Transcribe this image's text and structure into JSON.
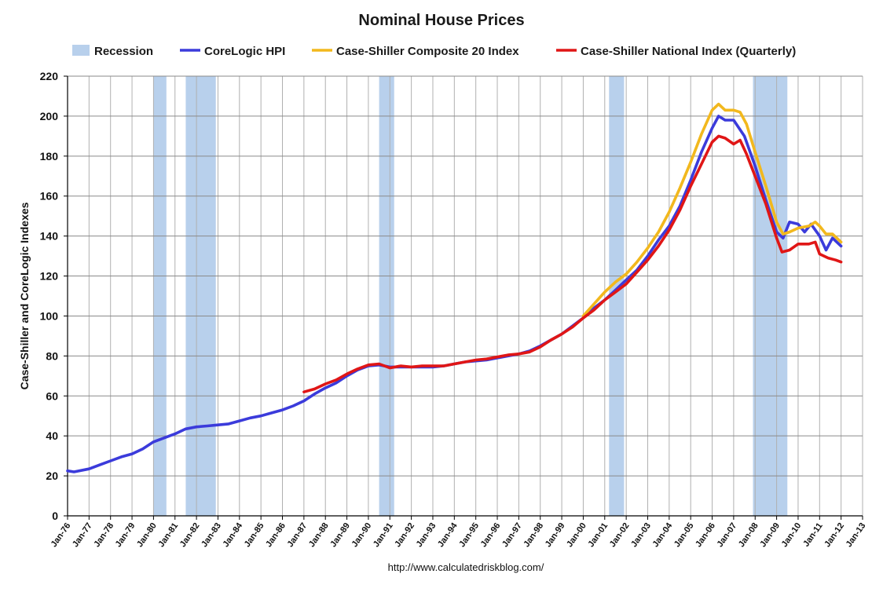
{
  "chart_data": {
    "type": "line",
    "title": "Nominal House Prices",
    "ylabel": "Case-Shiller and CoreLogic Indexes",
    "xlabel": "",
    "ylim": [
      0,
      220
    ],
    "yticks": [
      0,
      20,
      40,
      60,
      80,
      100,
      120,
      140,
      160,
      180,
      200,
      220
    ],
    "xlim": [
      1976,
      2013
    ],
    "xtick_labels": [
      "Jan-76",
      "Jan-77",
      "Jan-78",
      "Jan-79",
      "Jan-80",
      "Jan-81",
      "Jan-82",
      "Jan-83",
      "Jan-84",
      "Jan-85",
      "Jan-86",
      "Jan-87",
      "Jan-88",
      "Jan-89",
      "Jan-90",
      "Jan-91",
      "Jan-92",
      "Jan-93",
      "Jan-94",
      "Jan-95",
      "Jan-96",
      "Jan-97",
      "Jan-98",
      "Jan-99",
      "Jan-00",
      "Jan-01",
      "Jan-02",
      "Jan-03",
      "Jan-04",
      "Jan-05",
      "Jan-06",
      "Jan-07",
      "Jan-08",
      "Jan-09",
      "Jan-10",
      "Jan-11",
      "Jan-12",
      "Jan-13"
    ],
    "grid": true,
    "legend_position": "top",
    "recession": {
      "name": "Recession",
      "color": "#b8d0ec",
      "periods": [
        [
          1980.0,
          1980.6
        ],
        [
          1981.5,
          1982.9
        ],
        [
          1990.5,
          1991.2
        ],
        [
          2001.2,
          2001.9
        ],
        [
          2007.9,
          2009.5
        ]
      ]
    },
    "series": [
      {
        "name": "CoreLogic HPI",
        "color": "#3b3bdb",
        "points": [
          [
            1976.0,
            22.5
          ],
          [
            1976.3,
            22
          ],
          [
            1977.0,
            23.5
          ],
          [
            1977.5,
            25.5
          ],
          [
            1978.0,
            27.5
          ],
          [
            1978.5,
            29.5
          ],
          [
            1979.0,
            31
          ],
          [
            1979.5,
            33.5
          ],
          [
            1980.0,
            37
          ],
          [
            1980.5,
            39
          ],
          [
            1981.0,
            41
          ],
          [
            1981.5,
            43.5
          ],
          [
            1982.0,
            44.5
          ],
          [
            1982.5,
            45
          ],
          [
            1983.0,
            45.5
          ],
          [
            1983.5,
            46
          ],
          [
            1984.0,
            47.5
          ],
          [
            1984.5,
            49
          ],
          [
            1985.0,
            50
          ],
          [
            1985.5,
            51.5
          ],
          [
            1986.0,
            53
          ],
          [
            1986.5,
            55
          ],
          [
            1987.0,
            57.5
          ],
          [
            1987.5,
            61
          ],
          [
            1988.0,
            64
          ],
          [
            1988.5,
            66.5
          ],
          [
            1989.0,
            70
          ],
          [
            1989.5,
            73
          ],
          [
            1990.0,
            75
          ],
          [
            1990.5,
            75.5
          ],
          [
            1991.0,
            74.5
          ],
          [
            1991.5,
            74.5
          ],
          [
            1992.0,
            74.5
          ],
          [
            1992.5,
            74.5
          ],
          [
            1993.0,
            74.5
          ],
          [
            1993.5,
            75
          ],
          [
            1994.0,
            76
          ],
          [
            1994.5,
            77
          ],
          [
            1995.0,
            77.5
          ],
          [
            1995.5,
            78
          ],
          [
            1996.0,
            79
          ],
          [
            1996.5,
            80
          ],
          [
            1997.0,
            81
          ],
          [
            1997.5,
            82.5
          ],
          [
            1998.0,
            85
          ],
          [
            1998.5,
            88
          ],
          [
            1999.0,
            91
          ],
          [
            1999.5,
            95
          ],
          [
            2000.0,
            99
          ],
          [
            2000.5,
            104
          ],
          [
            2001.0,
            108
          ],
          [
            2001.5,
            113
          ],
          [
            2002.0,
            118
          ],
          [
            2002.5,
            123
          ],
          [
            2003.0,
            130
          ],
          [
            2003.5,
            138
          ],
          [
            2004.0,
            145
          ],
          [
            2004.5,
            155
          ],
          [
            2005.0,
            168
          ],
          [
            2005.5,
            182
          ],
          [
            2006.0,
            194
          ],
          [
            2006.3,
            200
          ],
          [
            2006.6,
            198
          ],
          [
            2007.0,
            198
          ],
          [
            2007.5,
            190
          ],
          [
            2008.0,
            175
          ],
          [
            2008.5,
            158
          ],
          [
            2009.0,
            142
          ],
          [
            2009.3,
            139
          ],
          [
            2009.6,
            147
          ],
          [
            2010.0,
            146
          ],
          [
            2010.3,
            142
          ],
          [
            2010.6,
            146
          ],
          [
            2011.0,
            140
          ],
          [
            2011.3,
            133
          ],
          [
            2011.6,
            139
          ],
          [
            2012.0,
            135
          ]
        ]
      },
      {
        "name": "Case-Shiller Composite 20 Index",
        "color": "#f2b81d",
        "points": [
          [
            2000.0,
            100
          ],
          [
            2000.5,
            106
          ],
          [
            2001.0,
            112
          ],
          [
            2001.5,
            117
          ],
          [
            2002.0,
            121
          ],
          [
            2002.5,
            127
          ],
          [
            2003.0,
            134
          ],
          [
            2003.5,
            142
          ],
          [
            2004.0,
            152
          ],
          [
            2004.5,
            164
          ],
          [
            2005.0,
            177
          ],
          [
            2005.5,
            191
          ],
          [
            2006.0,
            203
          ],
          [
            2006.3,
            206
          ],
          [
            2006.6,
            203
          ],
          [
            2007.0,
            203
          ],
          [
            2007.3,
            202
          ],
          [
            2007.6,
            196
          ],
          [
            2008.0,
            182
          ],
          [
            2008.5,
            165
          ],
          [
            2009.0,
            147
          ],
          [
            2009.3,
            141
          ],
          [
            2009.6,
            142
          ],
          [
            2010.0,
            144
          ],
          [
            2010.5,
            145
          ],
          [
            2010.8,
            147
          ],
          [
            2011.0,
            145
          ],
          [
            2011.3,
            141
          ],
          [
            2011.6,
            141
          ],
          [
            2012.0,
            137
          ]
        ]
      },
      {
        "name": "Case-Shiller National Index (Quarterly)",
        "color": "#e01616",
        "points": [
          [
            1987.0,
            62
          ],
          [
            1987.5,
            63.5
          ],
          [
            1988.0,
            66
          ],
          [
            1988.5,
            68
          ],
          [
            1989.0,
            71
          ],
          [
            1989.5,
            73.5
          ],
          [
            1990.0,
            75.5
          ],
          [
            1990.5,
            76
          ],
          [
            1991.0,
            74
          ],
          [
            1991.5,
            75
          ],
          [
            1992.0,
            74.5
          ],
          [
            1992.5,
            75
          ],
          [
            1993.0,
            75
          ],
          [
            1993.5,
            75
          ],
          [
            1994.0,
            76
          ],
          [
            1994.5,
            77
          ],
          [
            1995.0,
            78
          ],
          [
            1995.5,
            78.5
          ],
          [
            1996.0,
            79.5
          ],
          [
            1996.5,
            80.5
          ],
          [
            1997.0,
            81
          ],
          [
            1997.5,
            82
          ],
          [
            1998.0,
            84.5
          ],
          [
            1998.5,
            88
          ],
          [
            1999.0,
            91
          ],
          [
            1999.5,
            94.5
          ],
          [
            2000.0,
            99
          ],
          [
            2000.5,
            103
          ],
          [
            2001.0,
            108
          ],
          [
            2001.5,
            112
          ],
          [
            2002.0,
            116
          ],
          [
            2002.5,
            122
          ],
          [
            2003.0,
            128
          ],
          [
            2003.5,
            135
          ],
          [
            2004.0,
            143
          ],
          [
            2004.5,
            153
          ],
          [
            2005.0,
            165
          ],
          [
            2005.5,
            176
          ],
          [
            2006.0,
            187
          ],
          [
            2006.3,
            190
          ],
          [
            2006.6,
            189
          ],
          [
            2007.0,
            186
          ],
          [
            2007.3,
            188
          ],
          [
            2007.6,
            181
          ],
          [
            2008.0,
            170
          ],
          [
            2008.5,
            156
          ],
          [
            2009.0,
            139
          ],
          [
            2009.25,
            132
          ],
          [
            2009.6,
            133
          ],
          [
            2010.0,
            136
          ],
          [
            2010.5,
            136
          ],
          [
            2010.8,
            137
          ],
          [
            2011.0,
            131
          ],
          [
            2011.4,
            129
          ],
          [
            2011.75,
            128
          ],
          [
            2012.0,
            127
          ]
        ]
      }
    ]
  },
  "footer": {
    "source_url": "http://www.calculatedriskblog.com/"
  }
}
